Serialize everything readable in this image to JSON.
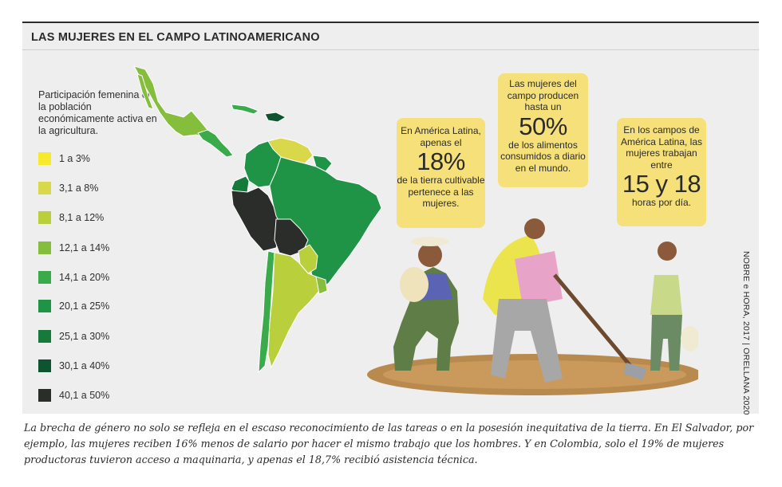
{
  "title": "LAS MUJERES EN EL CAMPO LATINOAMERICANO",
  "legend": {
    "title": "Participación femenina en la población económicamente activa en la agricultura.",
    "items": [
      {
        "label": "1 a 3%",
        "color": "#f7e92d"
      },
      {
        "label": "3,1 a 8%",
        "color": "#d9d84a"
      },
      {
        "label": "8,1 a 12%",
        "color": "#b9cf3c"
      },
      {
        "label": "12,1 a 14%",
        "color": "#85bd3c"
      },
      {
        "label": "14,1 a 20%",
        "color": "#3aab4a"
      },
      {
        "label": "20,1 a 25%",
        "color": "#1f9446"
      },
      {
        "label": "25,1 a 30%",
        "color": "#167a3b"
      },
      {
        "label": "30,1 a 40%",
        "color": "#0f5430"
      },
      {
        "label": "40,1 a 50%",
        "color": "#2a2d29"
      }
    ]
  },
  "callouts": [
    {
      "before": "En América Latina, apenas el",
      "big": "18%",
      "after": "de la tierra cultivable pertenece a las mujeres."
    },
    {
      "before": "Las mujeres del campo producen hasta un",
      "big": "50%",
      "after": "de los alimentos consumidos a diario en el mundo."
    },
    {
      "before": "En los campos de América Latina, las mujeres trabajan entre",
      "big": "15 y 18",
      "after": "horas por día."
    }
  ],
  "credit": "NOBRE e HORA, 2017 | ORELLANA 2020",
  "caption": "La brecha de género no solo se refleja en el escaso reconocimiento de las tareas o en la posesión inequitativa de la tierra. En El Salvador, por ejemplo, las mujeres reciben 16% menos de salario por hacer el mismo trabajo que los hombres. Y en Colombia, solo el 19% de mujeres productoras tuvieron acceso a maquinaria, y apenas el 18,7% recibió asistencia técnica.",
  "map_regions": [
    {
      "name": "Mexico",
      "legend_index": 3
    },
    {
      "name": "Central America",
      "legend_index": 4
    },
    {
      "name": "Cuba",
      "legend_index": 4
    },
    {
      "name": "Hispaniola",
      "legend_index": 7
    },
    {
      "name": "Venezuela",
      "legend_index": 1
    },
    {
      "name": "Colombia",
      "legend_index": 5
    },
    {
      "name": "Ecuador",
      "legend_index": 6
    },
    {
      "name": "Peru",
      "legend_index": 8
    },
    {
      "name": "Bolivia",
      "legend_index": 8
    },
    {
      "name": "Brazil",
      "legend_index": 5
    },
    {
      "name": "Paraguay",
      "legend_index": 2
    },
    {
      "name": "Chile",
      "legend_index": 4
    },
    {
      "name": "Argentina",
      "legend_index": 2
    },
    {
      "name": "Uruguay",
      "legend_index": 3
    },
    {
      "name": "Guianas",
      "legend_index": 5
    }
  ]
}
